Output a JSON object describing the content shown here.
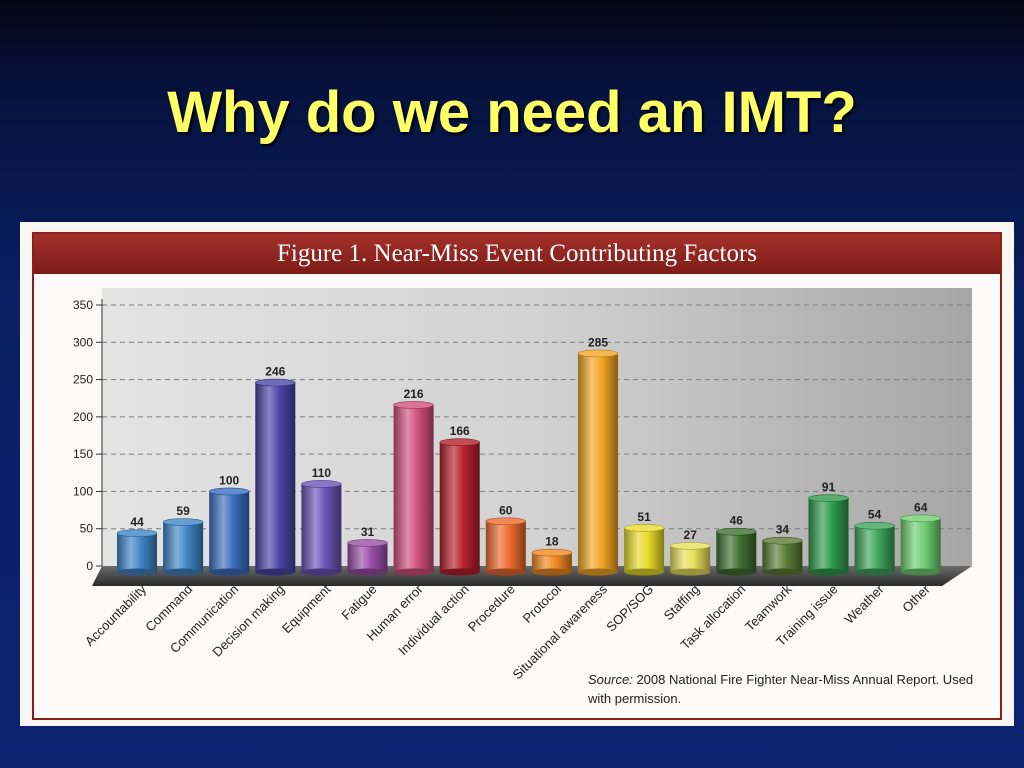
{
  "slide": {
    "title": "Why do we need an IMT?"
  },
  "figure": {
    "header": "Figure 1. Near-Miss Event Contributing Factors",
    "source_label": "Source:",
    "source_text": "2008 National Fire Fighter Near-Miss Annual Report. Used with permission."
  },
  "chart_data": {
    "type": "bar",
    "title": "Figure 1. Near-Miss Event Contributing Factors",
    "xlabel": "",
    "ylabel": "",
    "ylim": [
      0,
      350
    ],
    "yticks": [
      0,
      50,
      100,
      150,
      200,
      250,
      300,
      350
    ],
    "grid": true,
    "categories": [
      "Accountability",
      "Command",
      "Communication",
      "Decision making",
      "Equipment",
      "Fatigue",
      "Human error",
      "Individual action",
      "Procedure",
      "Protocol",
      "Situational awareness",
      "SOP/SOG",
      "Staffing",
      "Task allocation",
      "Teamwork",
      "Training issue",
      "Weather",
      "Other"
    ],
    "values": [
      44,
      59,
      100,
      246,
      110,
      31,
      216,
      166,
      60,
      18,
      285,
      51,
      27,
      46,
      34,
      91,
      54,
      64
    ],
    "colors": [
      "#3f86c6",
      "#3f86c6",
      "#3a6fc0",
      "#4b45a8",
      "#6a55b8",
      "#9a4fa8",
      "#d2507d",
      "#b5202a",
      "#ee6a2e",
      "#f08a20",
      "#f5a623",
      "#e8dc2a",
      "#e8e05a",
      "#3f6f2f",
      "#5a7c35",
      "#2f9a4b",
      "#3fa45a",
      "#6fcf72"
    ]
  }
}
